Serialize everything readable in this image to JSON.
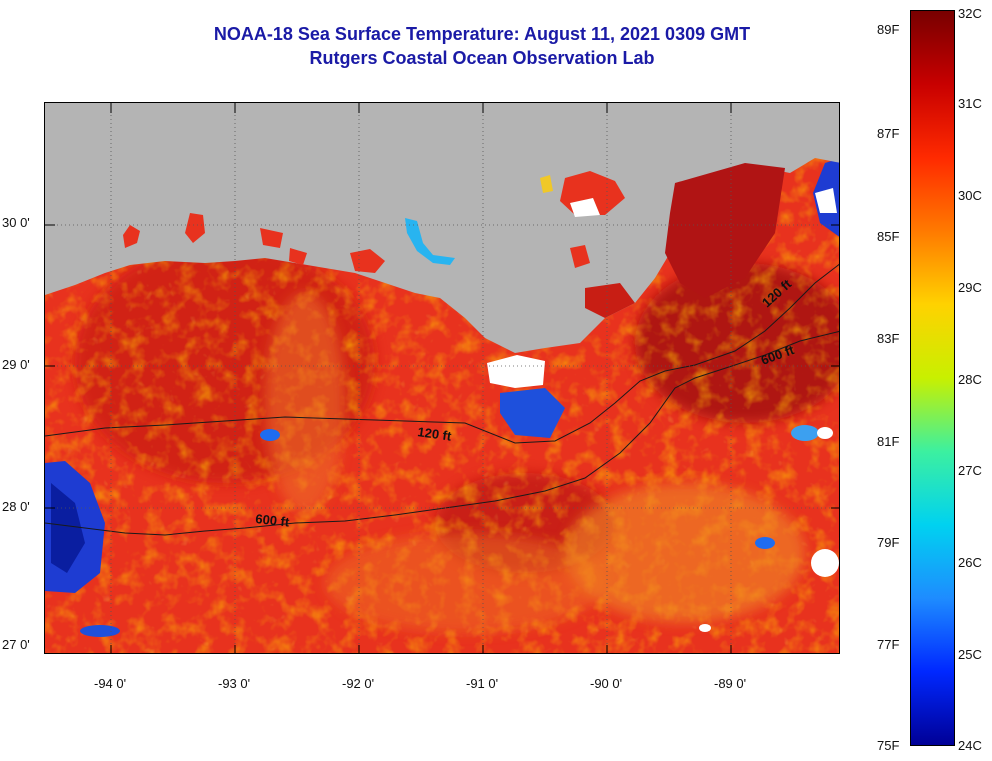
{
  "title": {
    "line1": "NOAA-18 Sea Surface Temperature:  August 11, 2021 0309 GMT",
    "line2": "Rutgers Coastal Ocean Observation Lab"
  },
  "map": {
    "lat_labels": [
      "30 0'",
      "29 0'",
      "28 0'",
      "27 0'"
    ],
    "lon_labels": [
      "-94 0'",
      "-93 0'",
      "-92 0'",
      "-91 0'",
      "-90 0'",
      "-89 0'"
    ],
    "contour_labels": [
      "120 ft",
      "600 ft",
      "120 ft",
      "600 ft"
    ],
    "colors": {
      "land": "#b4b4b4",
      "ocean_warm": "#e8321e",
      "ocean_hot": "#b01414",
      "ocean_orange": "#f07a1e",
      "ocean_cool": "#1e3cd2",
      "cloud": "#ffffff"
    }
  },
  "colorbar": {
    "fahrenheit_labels": [
      "89F",
      "87F",
      "85F",
      "83F",
      "81F",
      "79F",
      "77F",
      "75F"
    ],
    "celsius_labels": [
      "32C",
      "31C",
      "30C",
      "29C",
      "28C",
      "27C",
      "26C",
      "25C",
      "24C"
    ],
    "min_c": 24,
    "max_c": 32,
    "colors_top_to_bottom": [
      "#780000",
      "#c80000",
      "#ff2a00",
      "#ff7a00",
      "#ffd200",
      "#c8f000",
      "#3cf0a0",
      "#00d2f0",
      "#1e8cff",
      "#0028ff",
      "#000096"
    ]
  }
}
